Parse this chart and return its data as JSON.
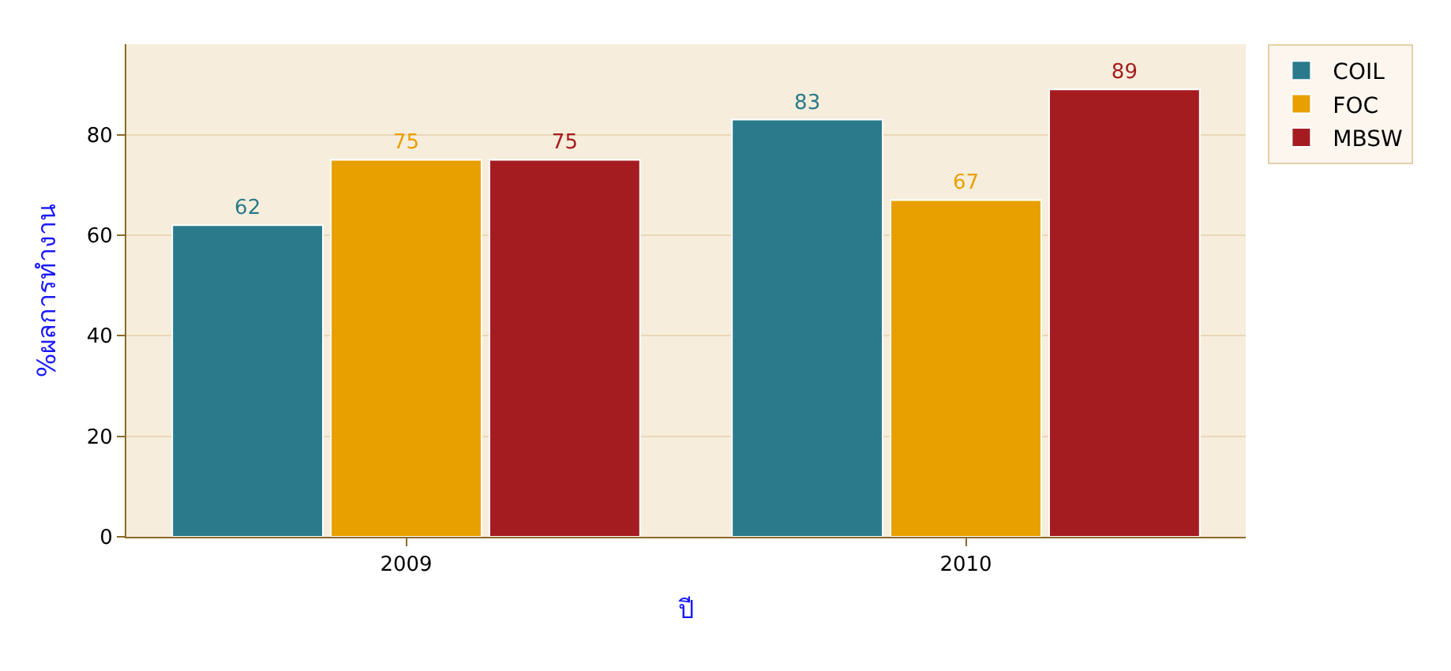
{
  "chart_data": {
    "type": "bar",
    "xlabel": "ปี",
    "ylabel": "%ผลการทำงาน",
    "categories": [
      "2009",
      "2010"
    ],
    "series": [
      {
        "name": "COIL",
        "color": "#2a7a8c",
        "values": [
          62,
          83
        ]
      },
      {
        "name": "FOC",
        "color": "#e8a000",
        "values": [
          75,
          67
        ]
      },
      {
        "name": "MBSW",
        "color": "#a51c20",
        "values": [
          75,
          89
        ]
      }
    ],
    "ylim": [
      0,
      98
    ],
    "yticks": [
      0,
      20,
      40,
      60,
      80
    ],
    "grid": "y",
    "legend": "top right",
    "data_labels": true
  }
}
